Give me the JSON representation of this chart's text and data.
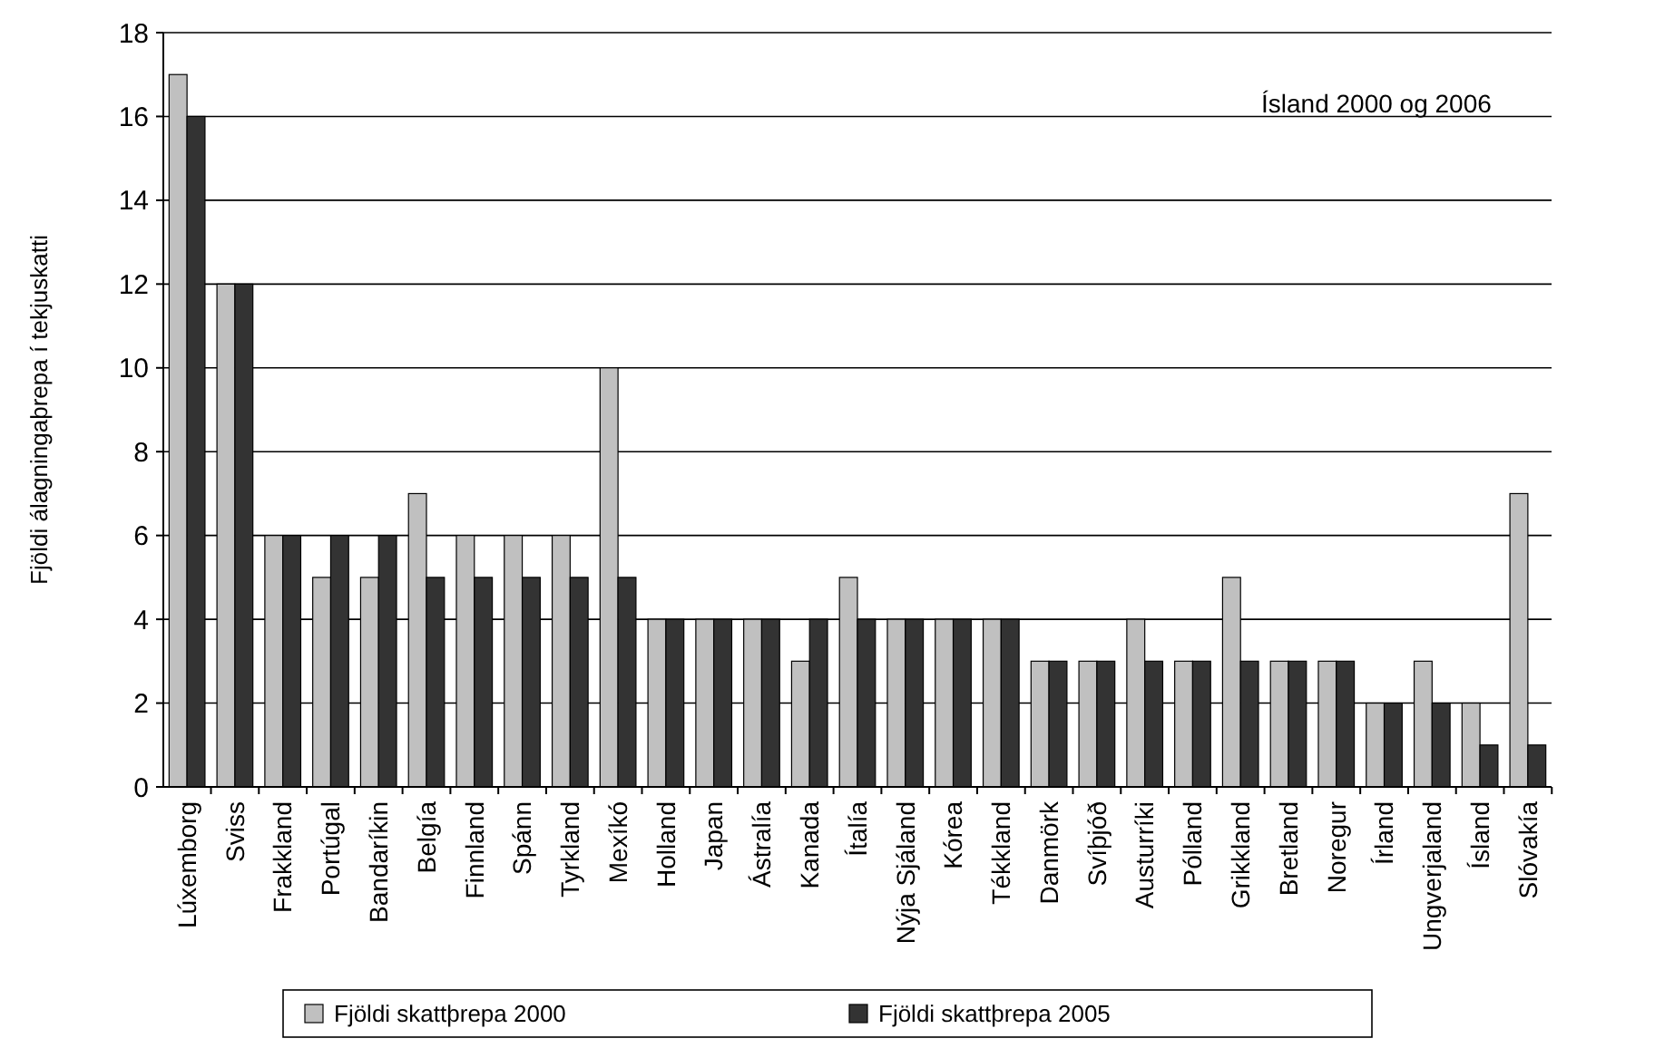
{
  "chart_data": {
    "type": "bar",
    "ylabel": "Fjöldi álagningaþrepa í tekjuskatti",
    "annotations": [
      "Ísland 2000 og 2006"
    ],
    "categories": [
      "Lúxemborg",
      "Sviss",
      "Frakkland",
      "Portúgal",
      "Bandaríkin",
      "Belgía",
      "Finnland",
      "Spánn",
      "Tyrkland",
      "Mexíkó",
      "Holland",
      "Japan",
      "Ástralía",
      "Kanada",
      "Ítalía",
      "Nýja Sjáland",
      "Kórea",
      "Tékkland",
      "Danmörk",
      "Svíþjóð",
      "Austurríki",
      "Pólland",
      "Grikkland",
      "Bretland",
      "Noregur",
      "Írland",
      "Ungverjaland",
      "Ísland",
      "Slóvakía"
    ],
    "series": [
      {
        "name": "Fjöldi skattþrepa 2000",
        "color": "#c0c0c0",
        "values": [
          17,
          12,
          6,
          5,
          5,
          7,
          6,
          6,
          6,
          10,
          4,
          4,
          4,
          3,
          5,
          4,
          4,
          4,
          3,
          3,
          4,
          3,
          5,
          3,
          3,
          2,
          3,
          2,
          7
        ]
      },
      {
        "name": "Fjöldi skattþrepa 2005",
        "color": "#333333",
        "values": [
          16,
          12,
          6,
          6,
          6,
          5,
          5,
          5,
          5,
          5,
          4,
          4,
          4,
          4,
          4,
          4,
          4,
          4,
          3,
          3,
          3,
          3,
          3,
          3,
          3,
          2,
          2,
          1,
          1
        ]
      }
    ],
    "ylim": [
      0,
      18
    ],
    "yticks": [
      0,
      2,
      4,
      6,
      8,
      10,
      12,
      14,
      16,
      18
    ],
    "grid": "y",
    "legend": "bottom"
  }
}
